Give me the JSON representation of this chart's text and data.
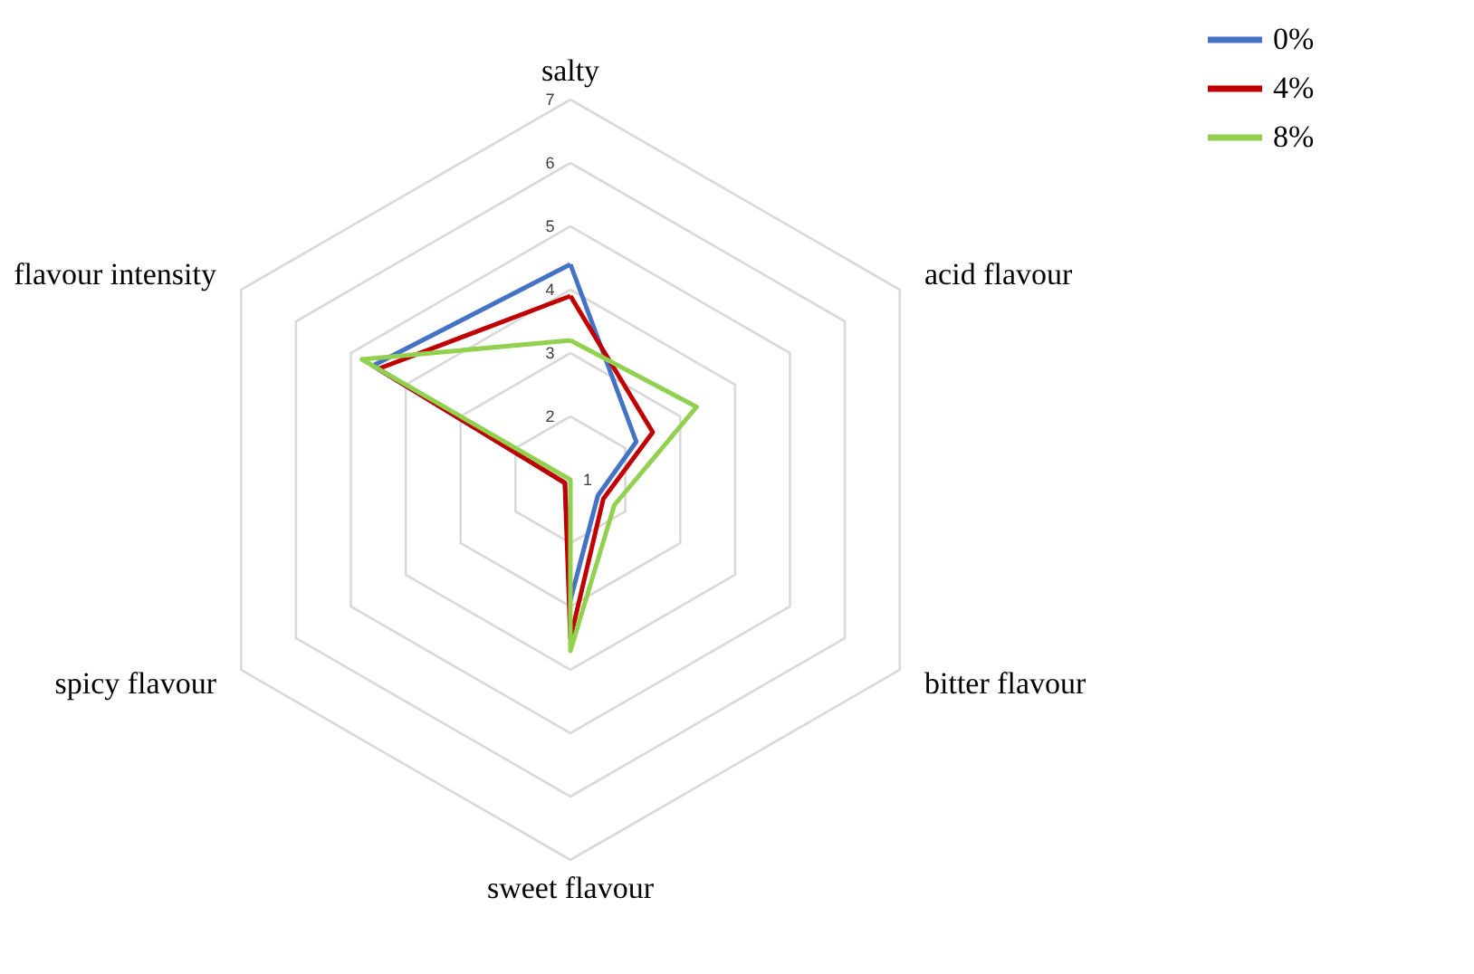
{
  "chart_data": {
    "type": "radar",
    "categories": [
      "salty",
      "acid flavour",
      "bitter flavour",
      "sweet flavour",
      "spicy flavour",
      "flavour intensity"
    ],
    "series": [
      {
        "name": "0%",
        "color": "#4472c4",
        "values": [
          4.4,
          2.2,
          1.5,
          2.9,
          1.1,
          4.6
        ]
      },
      {
        "name": "4%",
        "color": "#c00000",
        "values": [
          3.9,
          2.5,
          1.6,
          3.5,
          1.1,
          4.5
        ]
      },
      {
        "name": "8%",
        "color": "#92d050",
        "values": [
          3.2,
          3.3,
          1.8,
          3.7,
          1.0,
          4.8
        ]
      }
    ],
    "ylim": [
      1,
      7
    ],
    "yticks": [
      1,
      2,
      3,
      4,
      5,
      6,
      7
    ],
    "grid": true,
    "legend": "right"
  }
}
